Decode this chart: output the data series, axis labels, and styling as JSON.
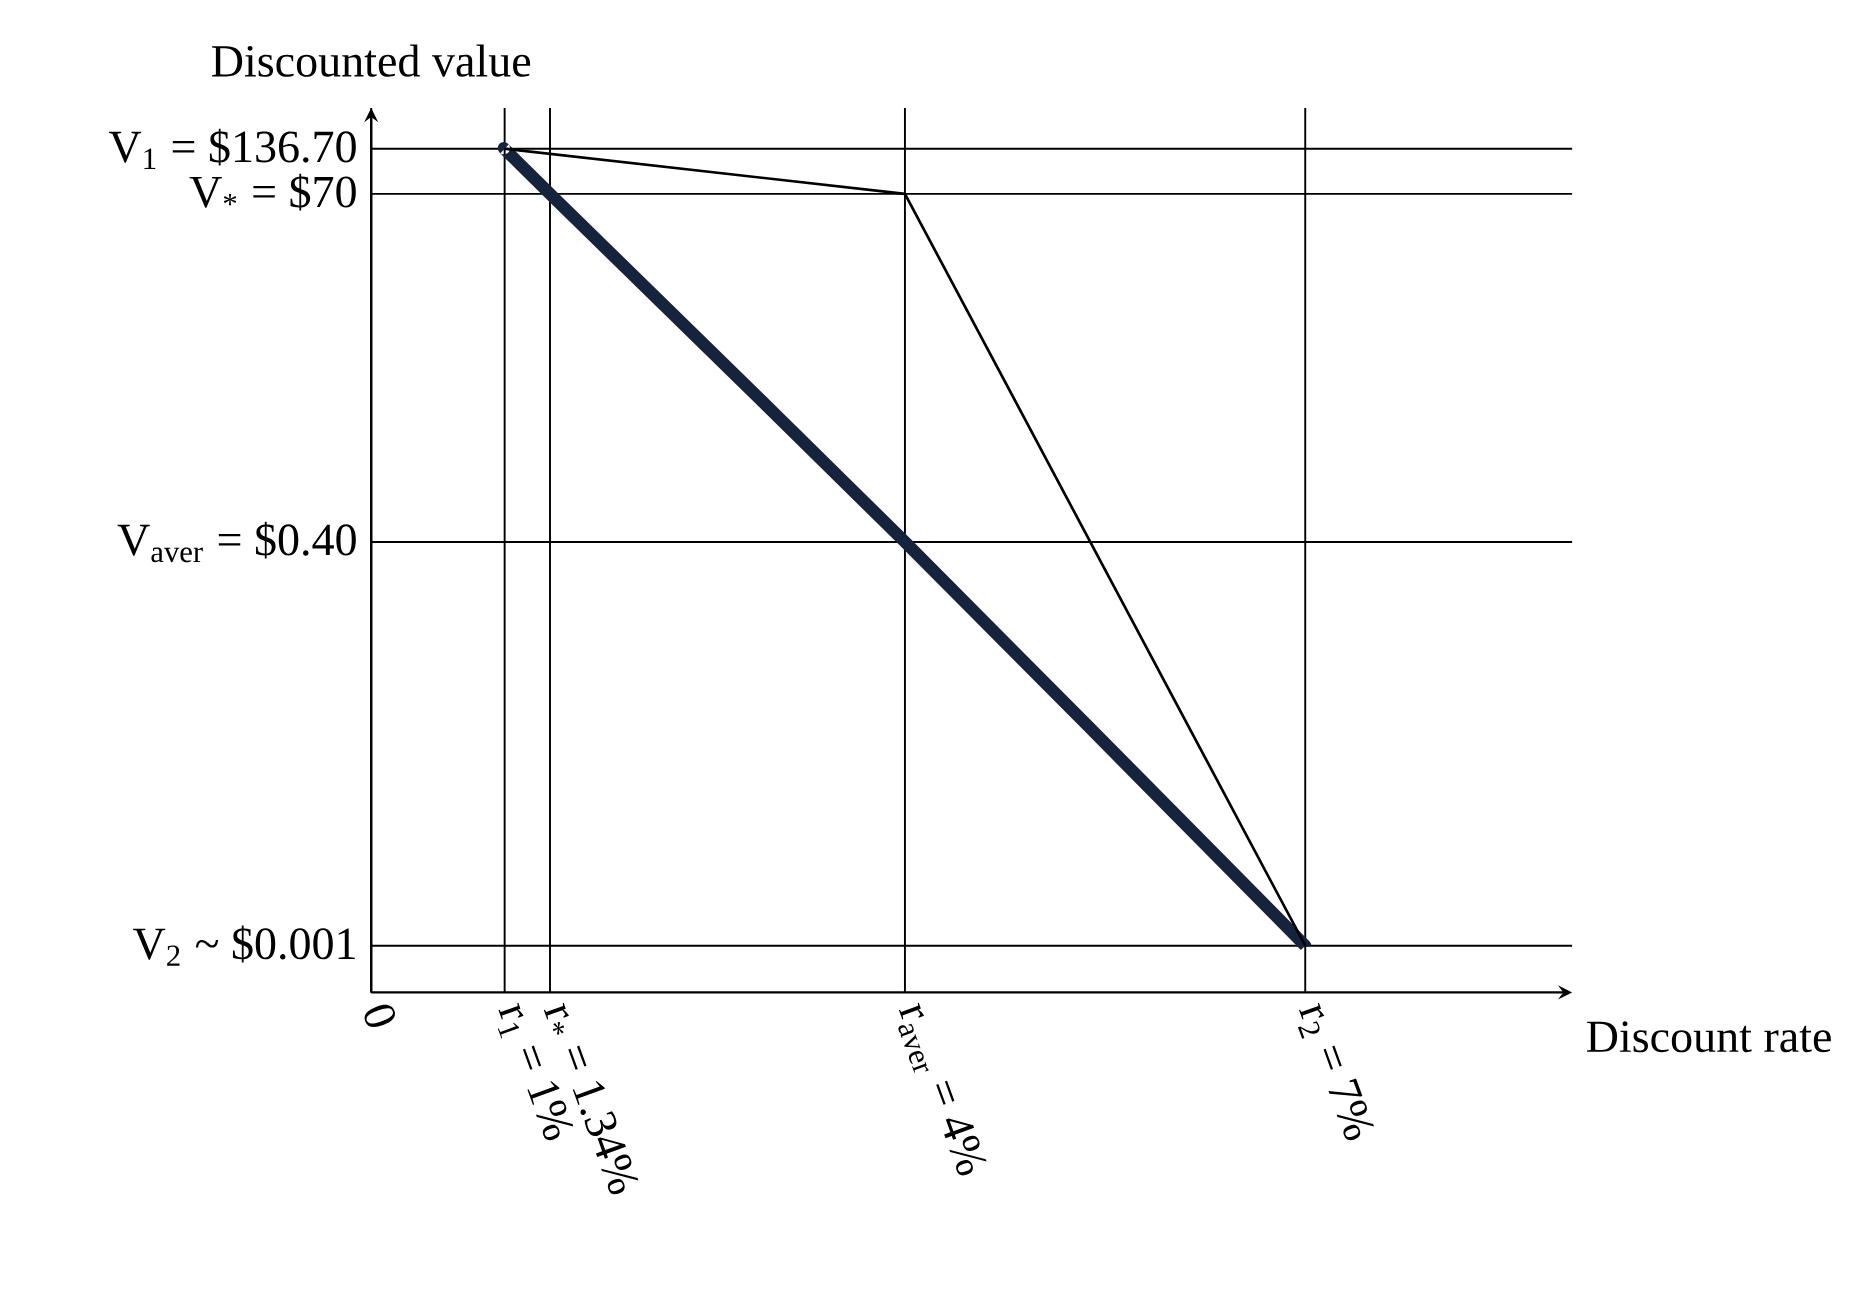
{
  "chart_data": {
    "type": "line",
    "xlabel": "Discount rate",
    "ylabel": "Discounted value",
    "log": "y",
    "grid": true,
    "marker": "none",
    "line_style": "solid",
    "xlim": [
      0,
      9
    ],
    "ylim": [
      0.0005,
      250
    ],
    "xticks": [
      {
        "value": 0,
        "label": "0"
      },
      {
        "value": 1,
        "label": "r$_{1}$ = 1%"
      },
      {
        "value": 1.34,
        "label": "r$_{*}$ = 1.34%"
      },
      {
        "value": 4,
        "label": "r$_{aver}$ = 4%"
      },
      {
        "value": 7,
        "label": "r$_{2}$ = 7%"
      }
    ],
    "yticks": [
      {
        "value": 136.7,
        "label": "V$_{1}$ = $136.70"
      },
      {
        "value": 70,
        "label": "V$_{*}$ = $70"
      },
      {
        "value": 0.4,
        "label": "V$_{aver}$ = $0.40"
      },
      {
        "value": 0.001,
        "label": "V$_{2}$ ~ $0.001"
      }
    ],
    "series": [
      {
        "color": "#16233d",
        "x": [
          1,
          1.34,
          4,
          7
        ],
        "values": [
          136.7,
          70,
          0.4,
          0.001
        ]
      },
      {
        "color": "#000000",
        "x": [
          1,
          4,
          7
        ],
        "values": [
          136.7,
          70,
          0.001
        ]
      }
    ]
  }
}
